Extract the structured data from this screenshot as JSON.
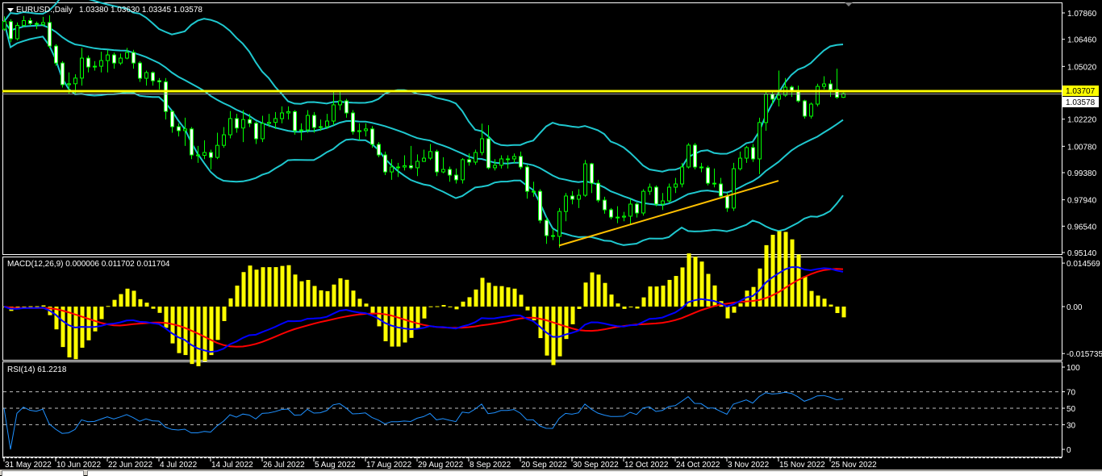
{
  "header": {
    "symbol": "EURUSD.,Daily",
    "ohlc_text": "1.03380 1.03630 1.03345 1.03578"
  },
  "price_axis": {
    "labels": [
      "1.07860",
      "1.06460",
      "1.05020",
      "1.02220",
      "1.00780",
      "0.99380",
      "0.97940",
      "0.96540",
      "0.95140"
    ],
    "hline_price": "1.03707",
    "bid_price": "1.03578"
  },
  "macd": {
    "label": "MACD(12,26,9) 0.000006 0.011702 0.011704",
    "axis_labels": [
      "0.014569",
      "0.00",
      "-0.015735"
    ]
  },
  "rsi": {
    "label": "RSI(14) 61.2218",
    "axis_labels": [
      "100",
      "70",
      "50",
      "30",
      "0"
    ],
    "levels": [
      70,
      50,
      30
    ]
  },
  "dates": [
    {
      "bar": 0,
      "label": "31 May 2022"
    },
    {
      "bar": 8,
      "label": "10 Jun 2022"
    },
    {
      "bar": 16,
      "label": "22 Jun 2022"
    },
    {
      "bar": 24,
      "label": "4 Jul 2022"
    },
    {
      "bar": 32,
      "label": "14 Jul 2022"
    },
    {
      "bar": 40,
      "label": "26 Jul 2022"
    },
    {
      "bar": 48,
      "label": "5 Aug 2022"
    },
    {
      "bar": 56,
      "label": "17 Aug 2022"
    },
    {
      "bar": 64,
      "label": "29 Aug 2022"
    },
    {
      "bar": 72,
      "label": "8 Sep 2022"
    },
    {
      "bar": 80,
      "label": "20 Sep 2022"
    },
    {
      "bar": 88,
      "label": "30 Sep 2022"
    },
    {
      "bar": 96,
      "label": "12 Oct 2022"
    },
    {
      "bar": 104,
      "label": "24 Oct 2022"
    },
    {
      "bar": 112,
      "label": "3 Nov 2022"
    },
    {
      "bar": 120,
      "label": "15 Nov 2022"
    },
    {
      "bar": 128,
      "label": "25 Nov 2022"
    }
  ],
  "colors": {
    "background": "#000000",
    "bull_outline": "#00ff00",
    "bear_body": "#ffffff",
    "bollinger": "#1fc8cf",
    "hline": "#ffff00",
    "trendline": "#ffc000",
    "macd_hist": "#ffff00",
    "macd_main": "#0000ff",
    "macd_signal": "#ff0000",
    "rsi": "#1e90ff"
  },
  "chart_data": {
    "type": "candlestick",
    "symbol": "EURUSD",
    "timeframe": "Daily",
    "ylim": [
      0.9505,
      1.0833
    ],
    "indicators": {
      "bollinger": {
        "period": 20,
        "deviation": 2
      },
      "macd": {
        "fast": 12,
        "slow": 26,
        "signal": 9
      },
      "rsi": {
        "period": 14
      }
    },
    "horizontal_line": 1.03707,
    "trendline": {
      "from": {
        "bar": 86,
        "price": 0.9551
      },
      "to": {
        "bar": 120,
        "price": 0.9895
      }
    },
    "ohlc": [
      [
        1.07,
        1.0768,
        1.069,
        1.074
      ],
      [
        1.074,
        1.0752,
        1.063,
        1.0649
      ],
      [
        1.0649,
        1.0735,
        1.064,
        1.072
      ],
      [
        1.072,
        1.077,
        1.0712,
        1.0745
      ],
      [
        1.0745,
        1.076,
        1.0718,
        1.073
      ],
      [
        1.073,
        1.074,
        1.07,
        1.0725
      ],
      [
        1.0725,
        1.0765,
        1.0715,
        1.0735
      ],
      [
        1.0735,
        1.0773,
        1.0598,
        1.061
      ],
      [
        1.061,
        1.062,
        1.0505,
        1.052
      ],
      [
        1.052,
        1.053,
        1.039,
        1.0405
      ],
      [
        1.0405,
        1.047,
        1.0358,
        1.041
      ],
      [
        1.041,
        1.046,
        1.0355,
        1.044
      ],
      [
        1.044,
        1.06,
        1.04,
        1.0546
      ],
      [
        1.0546,
        1.056,
        1.047,
        1.0499
      ],
      [
        1.0499,
        1.053,
        1.048,
        1.0503
      ],
      [
        1.0503,
        1.058,
        1.047,
        1.0533
      ],
      [
        1.0533,
        1.059,
        1.047,
        1.0563
      ],
      [
        1.0563,
        1.0575,
        1.049,
        1.052
      ],
      [
        1.052,
        1.057,
        1.051,
        1.0546
      ],
      [
        1.0546,
        1.06,
        1.054,
        1.0576
      ],
      [
        1.0576,
        1.059,
        1.049,
        1.052
      ],
      [
        1.052,
        1.053,
        1.042,
        1.0439
      ],
      [
        1.0439,
        1.048,
        1.04,
        1.0469
      ],
      [
        1.0469,
        1.0475,
        1.04,
        1.0426
      ],
      [
        1.0426,
        1.044,
        1.038,
        1.042
      ],
      [
        1.042,
        1.044,
        1.022,
        1.0263
      ],
      [
        1.0263,
        1.027,
        1.015,
        1.0182
      ],
      [
        1.0182,
        1.02,
        1.013,
        1.0161
      ],
      [
        1.0161,
        1.023,
        1.008,
        1.017
      ],
      [
        1.017,
        1.018,
        1.001,
        1.0032
      ],
      [
        1.0032,
        1.008,
        0.999,
        1.003
      ],
      [
        1.003,
        1.011,
        1.001,
        1.0045
      ],
      [
        1.0045,
        1.006,
        0.9955,
        1.0019
      ],
      [
        1.0019,
        1.015,
        1.001,
        1.0083
      ],
      [
        1.0083,
        1.018,
        1.007,
        1.0139
      ],
      [
        1.0139,
        1.0265,
        1.012,
        1.0225
      ],
      [
        1.0225,
        1.025,
        1.015,
        1.0175
      ],
      [
        1.0175,
        1.027,
        1.01,
        1.022
      ],
      [
        1.022,
        1.025,
        1.018,
        1.02
      ],
      [
        1.02,
        1.021,
        1.009,
        1.0118
      ],
      [
        1.0118,
        1.024,
        1.01,
        1.0199
      ],
      [
        1.0199,
        1.025,
        1.018,
        1.0205
      ],
      [
        1.0205,
        1.026,
        1.017,
        1.0225
      ],
      [
        1.0225,
        1.029,
        1.02,
        1.0255
      ],
      [
        1.0255,
        1.029,
        1.022,
        1.0262
      ],
      [
        1.0262,
        1.027,
        1.014,
        1.0161
      ],
      [
        1.0161,
        1.02,
        1.011,
        1.0165
      ],
      [
        1.0165,
        1.027,
        1.015,
        1.0242
      ],
      [
        1.0242,
        1.026,
        1.015,
        1.0178
      ],
      [
        1.0178,
        1.022,
        1.016,
        1.0182
      ],
      [
        1.0182,
        1.025,
        1.017,
        1.0212
      ],
      [
        1.0212,
        1.037,
        1.019,
        1.0298
      ],
      [
        1.0298,
        1.037,
        1.027,
        1.0319
      ],
      [
        1.0319,
        1.033,
        1.023,
        1.0255
      ],
      [
        1.0255,
        1.027,
        1.014,
        1.0156
      ],
      [
        1.0156,
        1.02,
        1.011,
        1.0161
      ],
      [
        1.0161,
        1.02,
        1.013,
        1.017
      ],
      [
        1.017,
        1.0185,
        1.007,
        1.0088
      ],
      [
        1.0088,
        1.01,
        1.002,
        1.0032
      ],
      [
        1.0032,
        1.005,
        0.9925,
        0.9942
      ],
      [
        0.9942,
        1.001,
        0.99,
        0.9968
      ],
      [
        0.9968,
        0.999,
        0.9915,
        0.9968
      ],
      [
        0.9968,
        1.003,
        0.995,
        0.9975
      ],
      [
        0.9975,
        1.008,
        0.9955,
        0.9964
      ],
      [
        0.9964,
        1.0035,
        0.992,
        0.9998
      ],
      [
        0.9998,
        1.006,
        0.9995,
        1.0015
      ],
      [
        1.0015,
        1.009,
        1.0005,
        1.005
      ],
      [
        1.005,
        1.006,
        0.992,
        0.9942
      ],
      [
        0.9942,
        1.002,
        0.9935,
        0.9955
      ],
      [
        0.9955,
        0.997,
        0.989,
        0.9925
      ],
      [
        0.9925,
        0.996,
        0.988,
        0.99
      ],
      [
        0.99,
        1.0015,
        0.988,
        1.0007
      ],
      [
        1.0007,
        1.004,
        0.9975,
        0.9994
      ],
      [
        0.9994,
        1.006,
        0.998,
        1.0045
      ],
      [
        1.0045,
        1.0198,
        1.003,
        1.0118
      ],
      [
        1.0118,
        1.019,
        0.9955,
        0.9964
      ],
      [
        0.9964,
        1.001,
        0.995,
        0.9977
      ],
      [
        0.9977,
        1.003,
        0.996,
        1.0011
      ],
      [
        1.0011,
        1.003,
        0.996,
        1.0011
      ],
      [
        1.0011,
        1.004,
        0.999,
        1.0024
      ],
      [
        1.0024,
        1.005,
        0.9955,
        0.9968
      ],
      [
        0.9968,
        0.998,
        0.98,
        0.9839
      ],
      [
        0.9839,
        0.989,
        0.981,
        0.9839
      ],
      [
        0.9839,
        0.985,
        0.967,
        0.9685
      ],
      [
        0.9685,
        0.97,
        0.956,
        0.9604
      ],
      [
        0.9604,
        0.964,
        0.958,
        0.96
      ],
      [
        0.96,
        0.975,
        0.954,
        0.9732
      ],
      [
        0.9732,
        0.983,
        0.968,
        0.9814
      ],
      [
        0.9814,
        0.984,
        0.977,
        0.9797
      ],
      [
        0.9797,
        0.985,
        0.975,
        0.9818
      ],
      [
        0.9818,
        1.0005,
        0.981,
        0.9985
      ],
      [
        0.9985,
        0.999,
        0.983,
        0.9882
      ],
      [
        0.9882,
        0.99,
        0.978,
        0.9792
      ],
      [
        0.9792,
        0.981,
        0.972,
        0.9741
      ],
      [
        0.9741,
        0.975,
        0.969,
        0.9702
      ],
      [
        0.9702,
        0.976,
        0.967,
        0.9702
      ],
      [
        0.9702,
        0.973,
        0.968,
        0.9707
      ],
      [
        0.9707,
        0.98,
        0.966,
        0.9771
      ],
      [
        0.9771,
        0.978,
        0.97,
        0.9724
      ],
      [
        0.9724,
        0.985,
        0.971,
        0.9839
      ],
      [
        0.9839,
        0.988,
        0.982,
        0.9861
      ],
      [
        0.9861,
        0.987,
        0.976,
        0.9771
      ],
      [
        0.9771,
        0.983,
        0.974,
        0.9788
      ],
      [
        0.9788,
        0.988,
        0.978,
        0.9861
      ],
      [
        0.9861,
        0.991,
        0.983,
        0.9878
      ],
      [
        0.9878,
        0.999,
        0.986,
        0.9968
      ],
      [
        0.9968,
        1.0095,
        0.996,
        1.0084
      ],
      [
        1.0084,
        1.0095,
        0.9955,
        0.9968
      ],
      [
        0.9968,
        0.999,
        0.994,
        0.9964
      ],
      [
        0.9964,
        0.9975,
        0.987,
        0.9882
      ],
      [
        0.9882,
        0.996,
        0.986,
        0.9878
      ],
      [
        0.9878,
        0.991,
        0.98,
        0.9814
      ],
      [
        0.9814,
        0.983,
        0.973,
        0.975
      ],
      [
        0.975,
        0.999,
        0.9735,
        0.9959
      ],
      [
        0.9959,
        1.005,
        0.995,
        1.0015
      ],
      [
        1.0015,
        1.008,
        0.999,
        1.0071
      ],
      [
        1.0071,
        1.009,
        0.9995,
        1.0011
      ],
      [
        1.0011,
        1.023,
        0.993,
        1.0204
      ],
      [
        1.0204,
        1.0365,
        1.016,
        1.0354
      ],
      [
        1.0354,
        1.0365,
        1.03,
        1.0328
      ],
      [
        1.0328,
        1.048,
        1.029,
        1.0349
      ],
      [
        1.0349,
        1.044,
        1.034,
        1.0392
      ],
      [
        1.0392,
        1.04,
        1.034,
        1.0375
      ],
      [
        1.0375,
        1.04,
        1.031,
        1.0319
      ],
      [
        1.0319,
        1.0325,
        1.0225,
        1.0238
      ],
      [
        1.0238,
        1.031,
        1.0225,
        1.0302
      ],
      [
        1.0302,
        1.041,
        1.029,
        1.0396
      ],
      [
        1.0396,
        1.045,
        1.038,
        1.0409
      ],
      [
        1.0409,
        1.043,
        1.034,
        1.0379
      ],
      [
        1.0379,
        1.049,
        1.033,
        1.0338
      ],
      [
        1.0338,
        1.0363,
        1.03345,
        1.03578
      ]
    ]
  }
}
